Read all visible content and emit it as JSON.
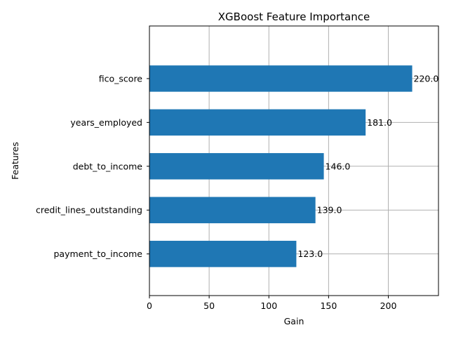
{
  "chart_data": {
    "type": "bar",
    "orientation": "horizontal",
    "title": "XGBoost Feature Importance",
    "xlabel": "Gain",
    "ylabel": "Features",
    "categories": [
      "payment_to_income",
      "credit_lines_outstanding",
      "debt_to_income",
      "years_employed",
      "fico_score"
    ],
    "values": [
      123.0,
      139.0,
      146.0,
      181.0,
      220.0
    ],
    "value_labels": [
      "123.0",
      "139.0",
      "146.0",
      "181.0",
      "220.0"
    ],
    "xlim": [
      0,
      242
    ],
    "xticks": [
      0,
      50,
      100,
      150,
      200
    ],
    "xtick_labels": [
      "0",
      "50",
      "100",
      "150",
      "200"
    ],
    "grid": true,
    "bar_color": "#1f77b4",
    "grid_color": "#b0b0b0"
  }
}
